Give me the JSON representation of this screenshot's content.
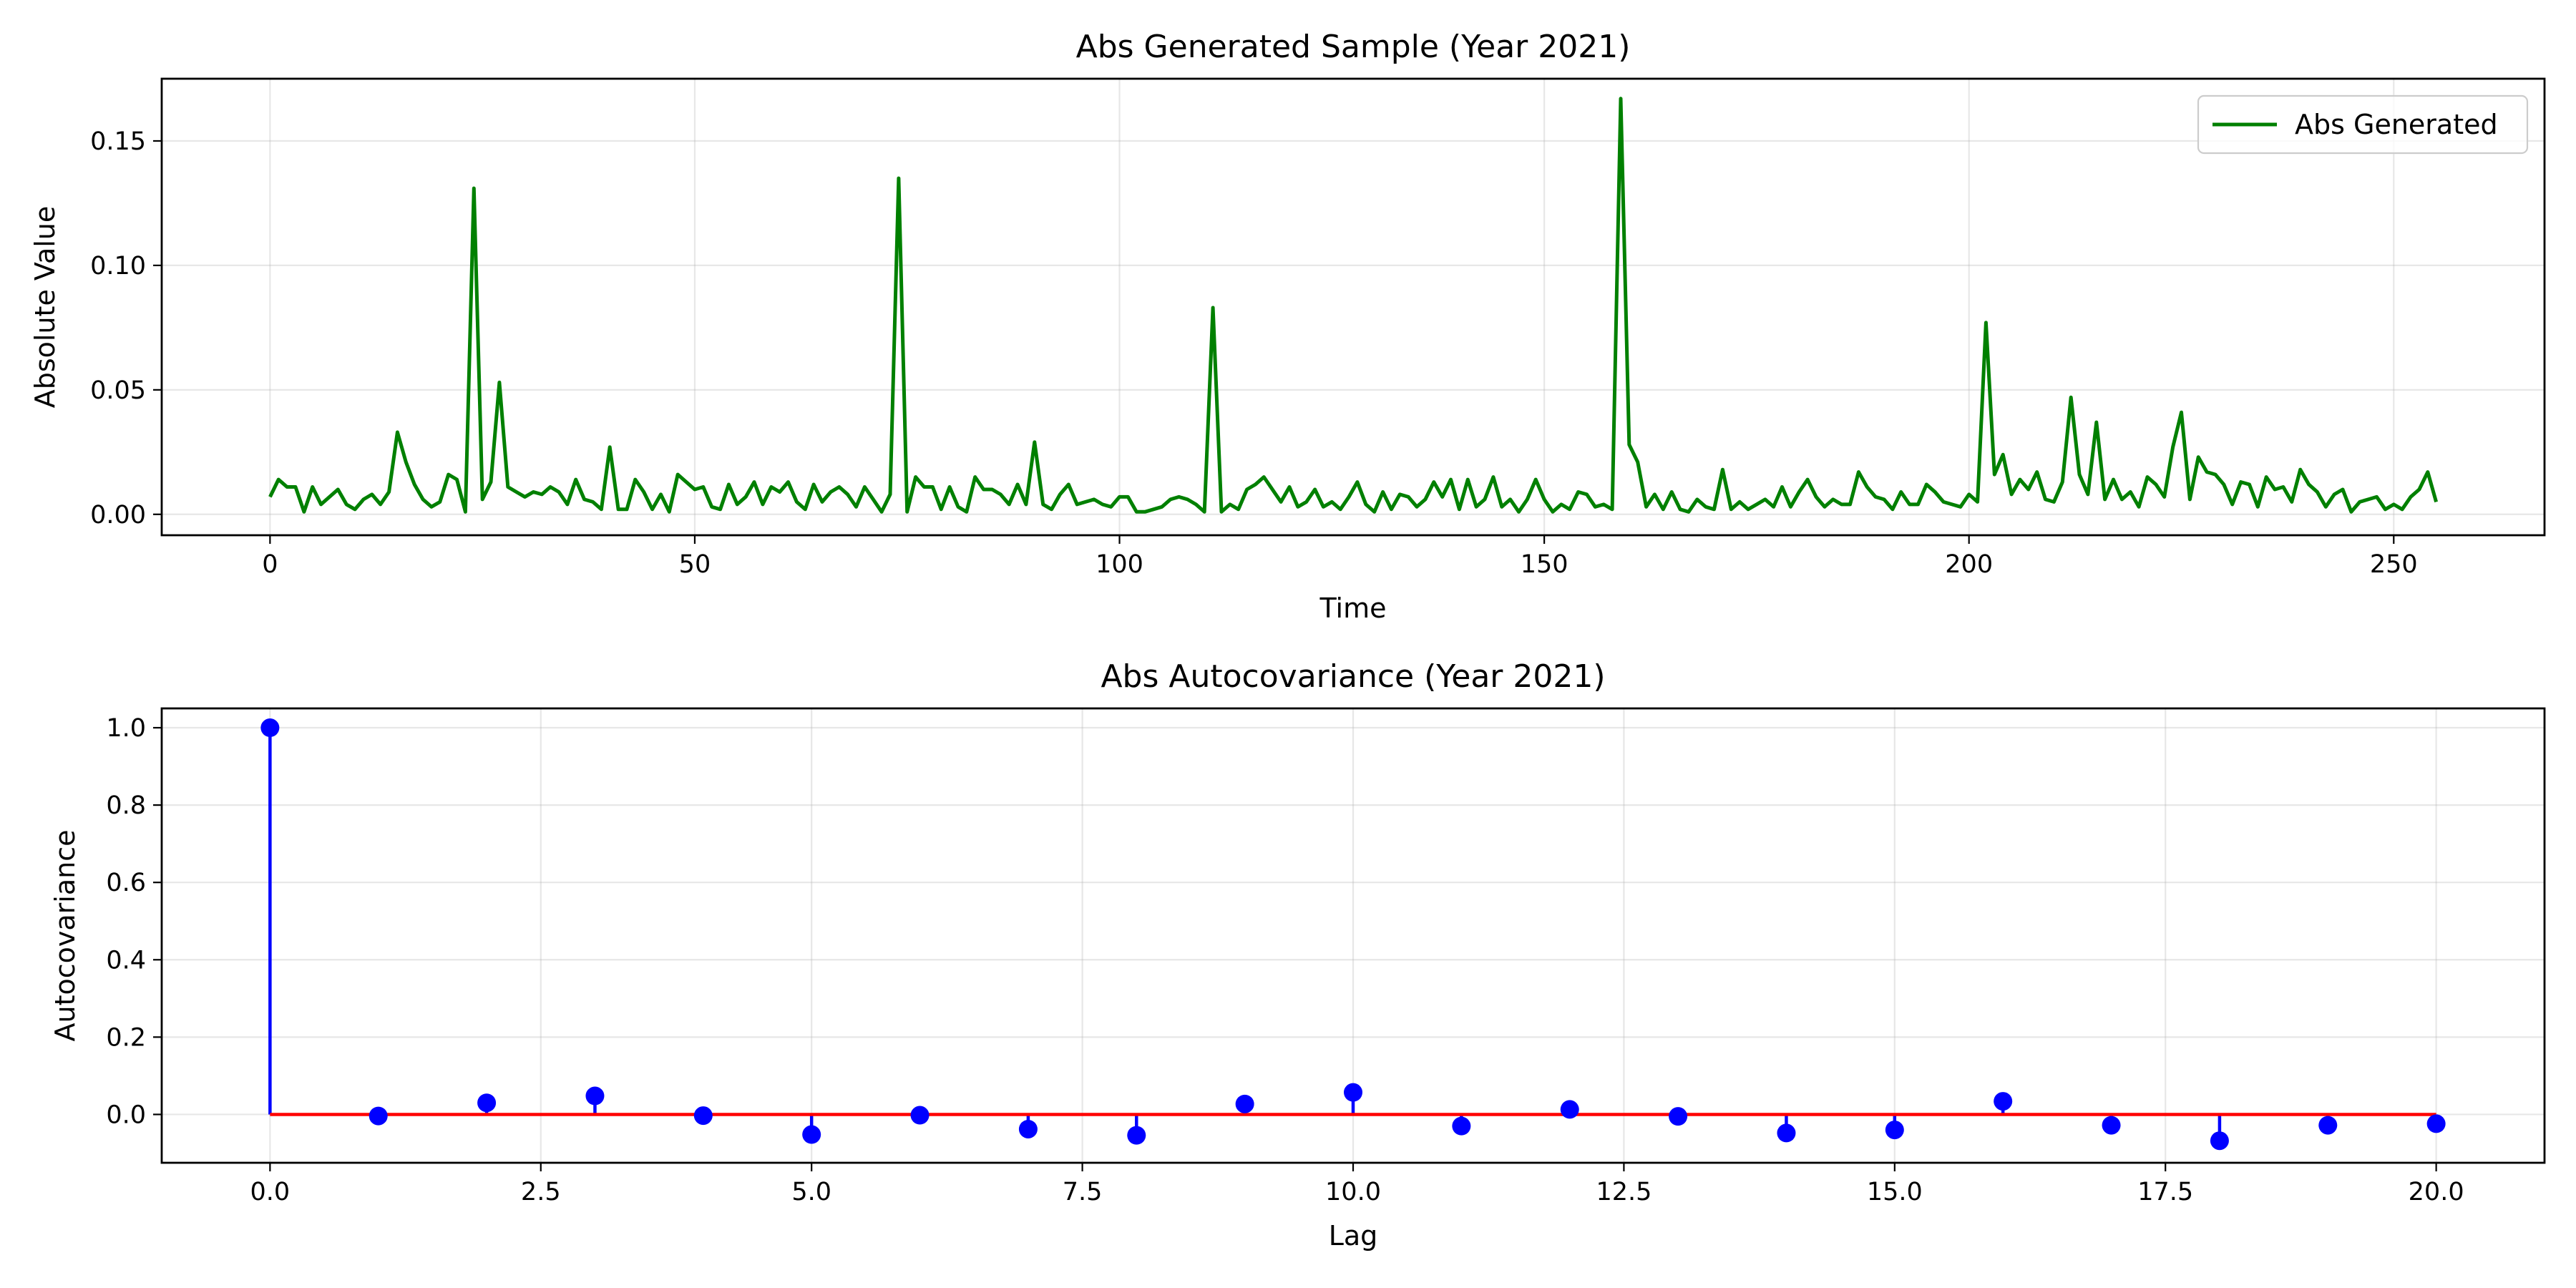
{
  "chart_data": [
    {
      "type": "line",
      "title": "Abs Generated Sample (Year 2021)",
      "xlabel": "Time",
      "ylabel": "Absolute Value",
      "xlim": [
        -12.75,
        267.75
      ],
      "ylim": [
        -0.0084,
        0.175
      ],
      "xticks": [
        0,
        50,
        100,
        150,
        200,
        250
      ],
      "xtick_labels": [
        "0",
        "50",
        "100",
        "150",
        "200",
        "250"
      ],
      "yticks": [
        0.0,
        0.05,
        0.1,
        0.15
      ],
      "ytick_labels": [
        "0.00",
        "0.05",
        "0.10",
        "0.15"
      ],
      "grid": true,
      "legend_position": "upper right",
      "series": [
        {
          "name": "Abs Generated",
          "color": "#008000",
          "x_start": 0,
          "x_step": 1,
          "values": [
            0.007,
            0.014,
            0.011,
            0.011,
            0.001,
            0.011,
            0.004,
            0.007,
            0.01,
            0.004,
            0.002,
            0.006,
            0.008,
            0.004,
            0.009,
            0.033,
            0.021,
            0.012,
            0.006,
            0.003,
            0.005,
            0.016,
            0.014,
            0.001,
            0.131,
            0.006,
            0.013,
            0.053,
            0.011,
            0.009,
            0.007,
            0.009,
            0.008,
            0.011,
            0.009,
            0.004,
            0.014,
            0.006,
            0.005,
            0.002,
            0.027,
            0.002,
            0.002,
            0.014,
            0.009,
            0.002,
            0.008,
            0.001,
            0.016,
            0.013,
            0.01,
            0.011,
            0.003,
            0.002,
            0.012,
            0.004,
            0.007,
            0.013,
            0.004,
            0.011,
            0.009,
            0.013,
            0.005,
            0.002,
            0.012,
            0.005,
            0.009,
            0.011,
            0.008,
            0.003,
            0.011,
            0.006,
            0.001,
            0.008,
            0.135,
            0.001,
            0.015,
            0.011,
            0.011,
            0.002,
            0.011,
            0.003,
            0.001,
            0.015,
            0.01,
            0.01,
            0.008,
            0.004,
            0.012,
            0.004,
            0.029,
            0.004,
            0.002,
            0.008,
            0.012,
            0.004,
            0.005,
            0.006,
            0.004,
            0.003,
            0.007,
            0.007,
            0.001,
            0.001,
            0.002,
            0.003,
            0.006,
            0.007,
            0.006,
            0.004,
            0.001,
            0.083,
            0.001,
            0.004,
            0.002,
            0.01,
            0.012,
            0.015,
            0.01,
            0.005,
            0.011,
            0.003,
            0.005,
            0.01,
            0.003,
            0.005,
            0.002,
            0.007,
            0.013,
            0.004,
            0.001,
            0.009,
            0.002,
            0.008,
            0.007,
            0.003,
            0.006,
            0.013,
            0.007,
            0.014,
            0.002,
            0.014,
            0.003,
            0.006,
            0.015,
            0.003,
            0.006,
            0.001,
            0.006,
            0.014,
            0.006,
            0.001,
            0.004,
            0.002,
            0.009,
            0.008,
            0.003,
            0.004,
            0.002,
            0.167,
            0.028,
            0.021,
            0.003,
            0.008,
            0.002,
            0.009,
            0.002,
            0.001,
            0.006,
            0.003,
            0.002,
            0.018,
            0.002,
            0.005,
            0.002,
            0.004,
            0.006,
            0.003,
            0.011,
            0.003,
            0.009,
            0.014,
            0.007,
            0.003,
            0.006,
            0.004,
            0.004,
            0.017,
            0.011,
            0.007,
            0.006,
            0.002,
            0.009,
            0.004,
            0.004,
            0.012,
            0.009,
            0.005,
            0.004,
            0.003,
            0.008,
            0.005,
            0.077,
            0.016,
            0.024,
            0.008,
            0.014,
            0.01,
            0.017,
            0.006,
            0.005,
            0.013,
            0.047,
            0.016,
            0.008,
            0.037,
            0.006,
            0.014,
            0.006,
            0.009,
            0.003,
            0.015,
            0.012,
            0.007,
            0.027,
            0.041,
            0.006,
            0.023,
            0.017,
            0.016,
            0.012,
            0.004,
            0.013,
            0.012,
            0.003,
            0.015,
            0.01,
            0.011,
            0.005,
            0.018,
            0.012,
            0.009,
            0.003,
            0.008,
            0.01,
            0.001,
            0.005,
            0.006,
            0.007,
            0.002,
            0.004,
            0.002,
            0.007,
            0.01,
            0.017,
            0.005
          ]
        }
      ]
    },
    {
      "type": "stem",
      "title": "Abs Autocovariance (Year 2021)",
      "xlabel": "Lag",
      "ylabel": "Autocovariance",
      "xlim": [
        -1.0,
        21.0
      ],
      "ylim": [
        -0.125,
        1.05
      ],
      "xticks": [
        0,
        2.5,
        5,
        7.5,
        10,
        12.5,
        15,
        17.5,
        20
      ],
      "xtick_labels": [
        "0.0",
        "2.5",
        "5.0",
        "7.5",
        "10.0",
        "12.5",
        "15.0",
        "17.5",
        "20.0"
      ],
      "yticks": [
        0.0,
        0.2,
        0.4,
        0.6,
        0.8,
        1.0
      ],
      "ytick_labels": [
        "0.0",
        "0.2",
        "0.4",
        "0.6",
        "0.8",
        "1.0"
      ],
      "grid": true,
      "marker_color": "#0000ff",
      "stem_color": "#0000ff",
      "baseline_color": "#ff0000",
      "x": [
        0,
        1,
        2,
        3,
        4,
        5,
        6,
        7,
        8,
        9,
        10,
        11,
        12,
        13,
        14,
        15,
        16,
        17,
        18,
        19,
        20
      ],
      "values": [
        1.0,
        -0.004,
        0.03,
        0.048,
        -0.003,
        -0.052,
        -0.002,
        -0.038,
        -0.054,
        0.027,
        0.057,
        -0.03,
        0.013,
        -0.005,
        -0.048,
        -0.04,
        0.034,
        -0.028,
        -0.068,
        -0.028,
        -0.024
      ]
    }
  ]
}
